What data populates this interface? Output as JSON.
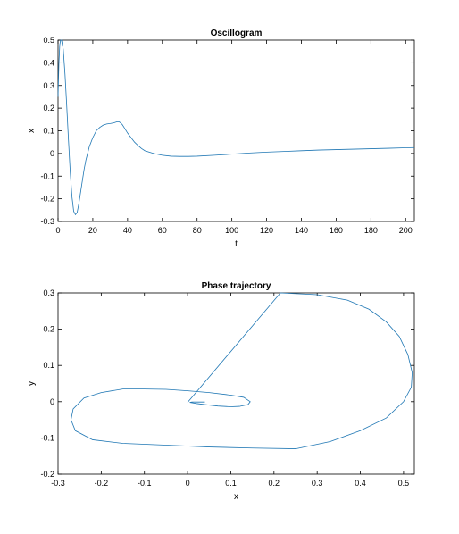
{
  "chart_data": [
    {
      "type": "line",
      "title": "Oscillogram",
      "xlabel": "t",
      "ylabel": "x",
      "xlim": [
        0,
        205
      ],
      "ylim": [
        -0.3,
        0.5
      ],
      "xticks": [
        0,
        20,
        40,
        60,
        80,
        100,
        120,
        140,
        160,
        180,
        200
      ],
      "yticks": [
        -0.3,
        -0.2,
        -0.1,
        0,
        0.1,
        0.2,
        0.3,
        0.4,
        0.5
      ],
      "xtick_labels": [
        "0",
        "20",
        "40",
        "60",
        "80",
        "100",
        "120",
        "140",
        "160",
        "180",
        "200"
      ],
      "ytick_labels": [
        "-0.3",
        "-0.2",
        "-0.1",
        "0",
        "0.1",
        "0.2",
        "0.3",
        "0.4",
        "0.5"
      ],
      "grid": false,
      "color": "#1f77b4",
      "x": [
        0,
        0.5,
        1,
        1.5,
        2,
        3,
        4,
        5,
        6,
        7,
        8,
        9,
        10,
        11,
        12,
        13,
        14,
        15,
        16,
        18,
        20,
        22,
        24,
        26,
        28,
        30,
        32,
        34,
        35,
        36,
        37,
        38,
        40,
        42,
        44,
        46,
        48,
        50,
        55,
        60,
        65,
        70,
        75,
        80,
        90,
        100,
        110,
        120,
        130,
        140,
        150,
        160,
        170,
        180,
        190,
        200,
        205
      ],
      "y": [
        0.25,
        0.4,
        0.48,
        0.52,
        0.52,
        0.46,
        0.35,
        0.21,
        0.06,
        -0.08,
        -0.19,
        -0.255,
        -0.27,
        -0.26,
        -0.22,
        -0.17,
        -0.12,
        -0.07,
        -0.03,
        0.03,
        0.07,
        0.1,
        0.115,
        0.125,
        0.13,
        0.132,
        0.135,
        0.14,
        0.14,
        0.135,
        0.127,
        0.115,
        0.09,
        0.07,
        0.05,
        0.035,
        0.022,
        0.012,
        0.0,
        -0.008,
        -0.012,
        -0.013,
        -0.013,
        -0.012,
        -0.008,
        -0.003,
        0.002,
        0.006,
        0.009,
        0.012,
        0.015,
        0.017,
        0.019,
        0.021,
        0.023,
        0.025,
        0.026
      ]
    },
    {
      "type": "line",
      "title": "Phase trajectory",
      "xlabel": "x",
      "ylabel": "y",
      "xlim": [
        -0.3,
        0.525
      ],
      "ylim": [
        -0.2,
        0.3
      ],
      "xticks": [
        -0.3,
        -0.2,
        -0.1,
        0,
        0.1,
        0.2,
        0.3,
        0.4,
        0.5
      ],
      "yticks": [
        -0.2,
        -0.1,
        0,
        0.1,
        0.2,
        0.3
      ],
      "xtick_labels": [
        "-0.3",
        "-0.2",
        "-0.1",
        "0",
        "0.1",
        "0.2",
        "0.3",
        "0.4",
        "0.5"
      ],
      "ytick_labels": [
        "-0.2",
        "-0.1",
        "0",
        "0.1",
        "0.2",
        "0.3"
      ],
      "grid": false,
      "color": "#1f77b4",
      "x": [
        0.0,
        0.215,
        0.3,
        0.37,
        0.42,
        0.46,
        0.49,
        0.51,
        0.52,
        0.518,
        0.5,
        0.46,
        0.4,
        0.33,
        0.25,
        0.15,
        0.05,
        -0.05,
        -0.15,
        -0.22,
        -0.26,
        -0.27,
        -0.265,
        -0.24,
        -0.2,
        -0.15,
        -0.1,
        -0.05,
        0.0,
        0.05,
        0.1,
        0.13,
        0.145,
        0.14,
        0.12,
        0.1,
        0.07,
        0.04,
        0.02,
        0.01,
        0.005,
        0.01,
        0.03,
        0.04
      ],
      "y": [
        -0.002,
        0.3,
        0.295,
        0.28,
        0.255,
        0.22,
        0.18,
        0.13,
        0.08,
        0.04,
        0.0,
        -0.045,
        -0.08,
        -0.11,
        -0.13,
        -0.128,
        -0.125,
        -0.12,
        -0.115,
        -0.105,
        -0.08,
        -0.05,
        -0.02,
        0.01,
        0.025,
        0.035,
        0.035,
        0.034,
        0.03,
        0.025,
        0.018,
        0.012,
        0.0,
        -0.008,
        -0.013,
        -0.014,
        -0.012,
        -0.008,
        -0.005,
        -0.003,
        -0.002,
        -0.001,
        -0.001,
        -0.001
      ]
    }
  ]
}
